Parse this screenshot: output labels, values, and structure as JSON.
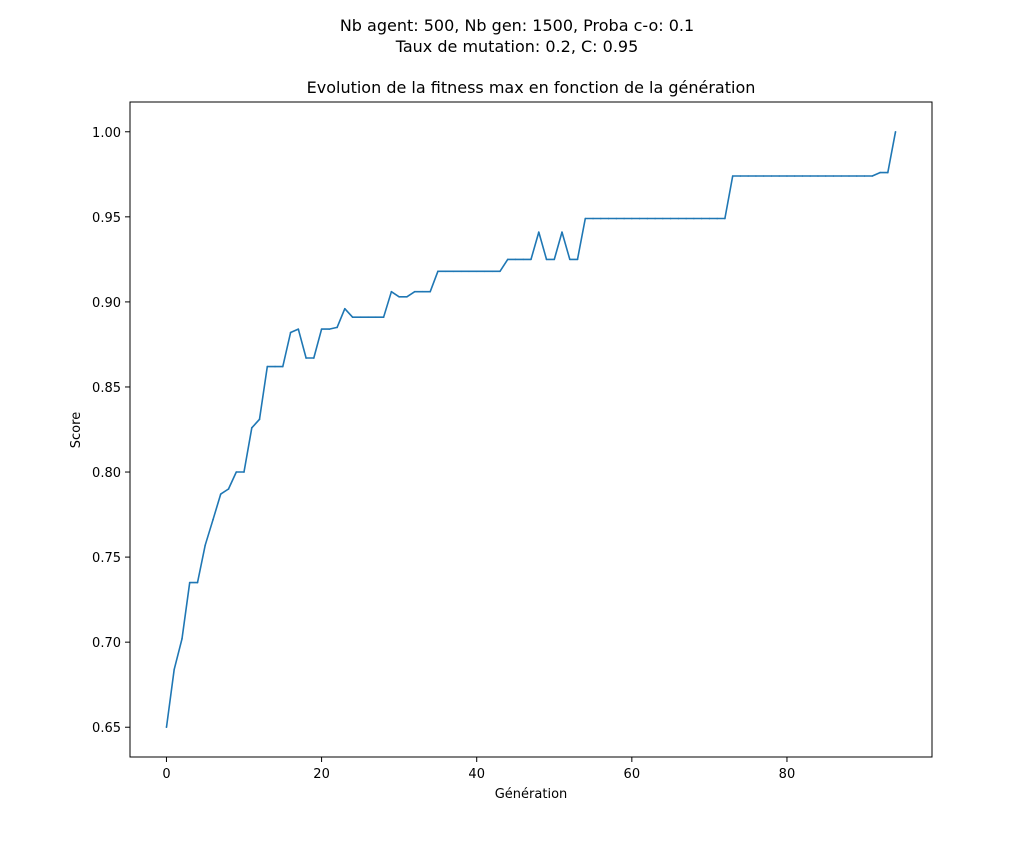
{
  "chart_data": {
    "type": "line",
    "suptitle_line1": "Nb agent: 500, Nb gen: 1500, Proba c-o: 0.1",
    "suptitle_line2": "Taux de mutation: 0.2, C: 0.95",
    "title": "Evolution de la fitness max en fonction de la génération",
    "xlabel": "Génération",
    "ylabel": "Score",
    "xlim": [
      -4.7,
      98.7
    ],
    "ylim": [
      0.6325,
      1.0175
    ],
    "xticks": [
      0,
      20,
      40,
      60,
      80
    ],
    "xtick_labels": [
      "0",
      "20",
      "40",
      "60",
      "80"
    ],
    "yticks": [
      0.65,
      0.7,
      0.75,
      0.8,
      0.85,
      0.9,
      0.95,
      1.0
    ],
    "ytick_labels": [
      "0.65",
      "0.70",
      "0.75",
      "0.80",
      "0.85",
      "0.90",
      "0.95",
      "1.00"
    ],
    "grid": false,
    "line_color": "#1f77b4",
    "series": [
      {
        "x": [
          0,
          1,
          2,
          3,
          4,
          5,
          6,
          7,
          8,
          9,
          10,
          11,
          12,
          13,
          14,
          15,
          16,
          17,
          18,
          19,
          20,
          21,
          22,
          23,
          24,
          25,
          26,
          27,
          28,
          29,
          30,
          31,
          32,
          33,
          34,
          35,
          36,
          37,
          38,
          39,
          40,
          41,
          42,
          43,
          44,
          45,
          46,
          47,
          48,
          49,
          50,
          51,
          52,
          53,
          54,
          55,
          56,
          57,
          58,
          59,
          60,
          61,
          62,
          63,
          64,
          65,
          66,
          67,
          68,
          69,
          70,
          71,
          72,
          73,
          74,
          75,
          76,
          77,
          78,
          79,
          80,
          81,
          82,
          83,
          84,
          85,
          86,
          87,
          88,
          89,
          90,
          91,
          92,
          93,
          94
        ],
        "values": [
          0.65,
          0.684,
          0.702,
          0.735,
          0.735,
          0.757,
          0.772,
          0.787,
          0.79,
          0.8,
          0.8,
          0.826,
          0.831,
          0.862,
          0.862,
          0.862,
          0.882,
          0.884,
          0.867,
          0.867,
          0.884,
          0.884,
          0.885,
          0.896,
          0.891,
          0.891,
          0.891,
          0.891,
          0.891,
          0.906,
          0.903,
          0.903,
          0.906,
          0.906,
          0.906,
          0.918,
          0.918,
          0.918,
          0.918,
          0.918,
          0.918,
          0.918,
          0.918,
          0.918,
          0.925,
          0.925,
          0.925,
          0.925,
          0.941,
          0.925,
          0.925,
          0.941,
          0.925,
          0.925,
          0.949,
          0.949,
          0.949,
          0.949,
          0.949,
          0.949,
          0.949,
          0.949,
          0.949,
          0.949,
          0.949,
          0.949,
          0.949,
          0.949,
          0.949,
          0.949,
          0.949,
          0.949,
          0.949,
          0.974,
          0.974,
          0.974,
          0.974,
          0.974,
          0.974,
          0.974,
          0.974,
          0.974,
          0.974,
          0.974,
          0.974,
          0.974,
          0.974,
          0.974,
          0.974,
          0.974,
          0.974,
          0.974,
          0.976,
          0.976,
          1.0
        ]
      }
    ]
  }
}
